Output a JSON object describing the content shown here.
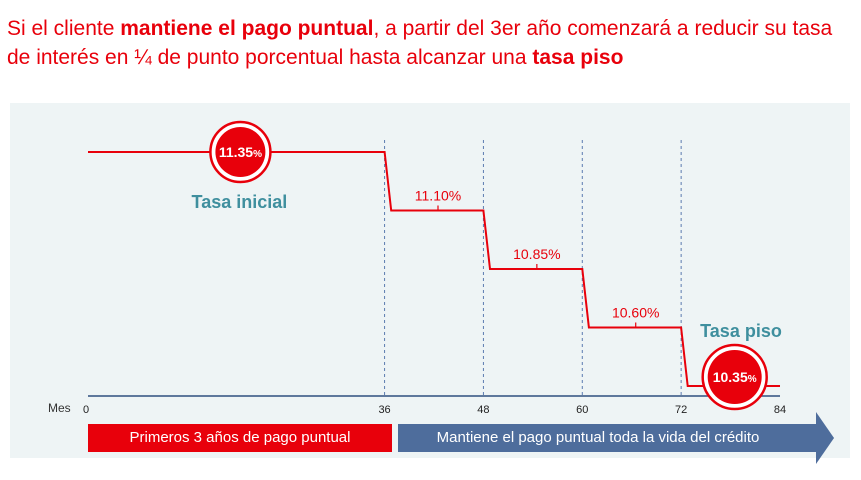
{
  "headline": {
    "part1": "Si el cliente ",
    "bold1": "mantiene el pago puntual",
    "part2": ", a partir del 3er año comenzará a reducir su tasa de interés en ¼ de punto porcentual hasta alcanzar una ",
    "bold2": "tasa piso"
  },
  "chart_data": {
    "type": "line",
    "step": true,
    "x_axis_label": "Mes",
    "x_ticks": [
      0,
      36,
      48,
      60,
      72,
      84
    ],
    "x_range": [
      0,
      84
    ],
    "y_range": [
      10.3,
      11.4
    ],
    "series": [
      {
        "color": "#e8000b",
        "x": [
          0,
          36,
          36,
          48,
          48,
          60,
          60,
          72,
          72,
          84
        ],
        "y": [
          11.35,
          11.35,
          11.1,
          11.1,
          10.85,
          10.85,
          10.6,
          10.6,
          10.35,
          10.35
        ]
      }
    ],
    "step_labels": [
      {
        "x_from": 36,
        "x_to": 48,
        "value": 11.1,
        "text": "11.10%"
      },
      {
        "x_from": 48,
        "x_to": 60,
        "value": 10.85,
        "text": "10.85%"
      },
      {
        "x_from": 60,
        "x_to": 72,
        "value": 10.6,
        "text": "10.60%"
      }
    ],
    "initial_rate": {
      "value": 11.35,
      "number": "11.35",
      "unit": "%",
      "label": "Tasa inicial"
    },
    "floor_rate": {
      "value": 10.35,
      "number": "10.35",
      "unit": "%",
      "label": "Tasa piso"
    },
    "dashed_guides_x": [
      36,
      48,
      60,
      72
    ],
    "periods": [
      {
        "text": "Primeros 3 años de pago puntual",
        "color": "#e8000b"
      },
      {
        "text": "Mantiene el pago puntual toda la vida del crédito",
        "color": "#4e6d9c"
      }
    ],
    "colors": {
      "line": "#e8000b",
      "label_teal": "#3f8f9e",
      "guide": "#5b7bb0",
      "axis": "#2f4f7f"
    }
  }
}
